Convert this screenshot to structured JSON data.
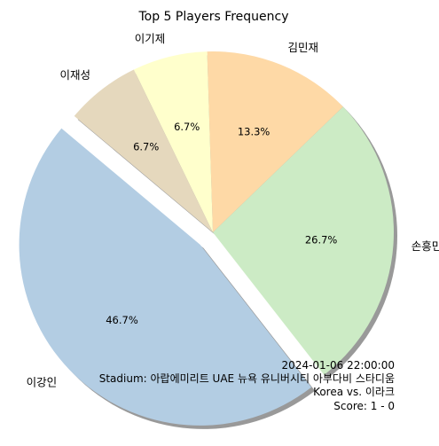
{
  "chart_data": {
    "type": "pie",
    "title": "Top 5 Players Frequency",
    "slices": [
      {
        "label": "이강인",
        "value": 46.7,
        "pct_label": "46.7%",
        "color": "#b3cde3",
        "exploded": true
      },
      {
        "label": "손흥민",
        "value": 26.7,
        "pct_label": "26.7%",
        "color": "#ccebc5",
        "exploded": false
      },
      {
        "label": "김민재",
        "value": 13.3,
        "pct_label": "13.3%",
        "color": "#fed9a6",
        "exploded": false
      },
      {
        "label": "이기제",
        "value": 6.7,
        "pct_label": "6.7%",
        "color": "#ffffcc",
        "exploded": false
      },
      {
        "label": "이재성",
        "value": 6.7,
        "pct_label": "6.7%",
        "color": "#e5d8bd",
        "exploded": false
      }
    ],
    "start_angle_deg": 140,
    "shadow": true,
    "annotation_lines": [
      "2024-01-06 22:00:00",
      "Stadium: 아랍에미리트 UAE 뉴욕 유니버시티 아부다비 스타디움",
      "Korea vs. 이라크",
      "Score: 1 - 0"
    ]
  }
}
